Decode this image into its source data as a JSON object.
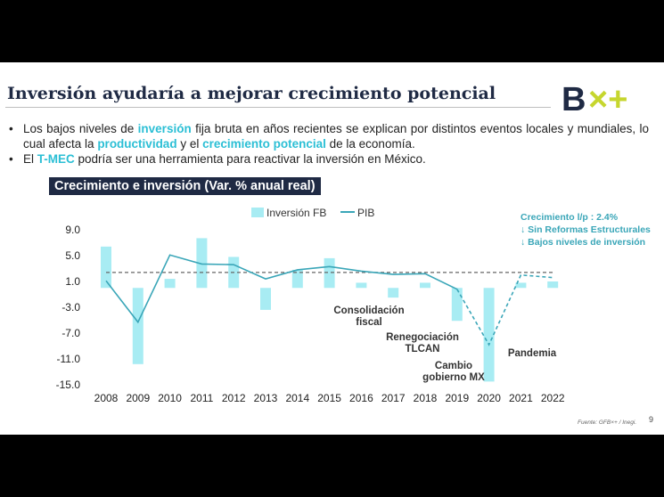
{
  "slide": {
    "title": "Inversión ayudaría a mejorar crecimiento potencial",
    "bullets": [
      [
        {
          "t": "Los bajos niveles de ",
          "hl": false
        },
        {
          "t": "inversión",
          "hl": true
        },
        {
          "t": " fija bruta en años recientes se explican por distintos eventos locales y mundiales, lo cual afecta la ",
          "hl": false
        },
        {
          "t": "productividad",
          "hl": true
        },
        {
          "t": " y el ",
          "hl": false
        },
        {
          "t": "crecimiento potencial",
          "hl": true
        },
        {
          "t": " de la economía.",
          "hl": false
        }
      ],
      [
        {
          "t": "El ",
          "hl": false
        },
        {
          "t": "T-MEC",
          "hl": true
        },
        {
          "t": " podría ser una herramienta para reactivar la inversión en México.",
          "hl": false
        }
      ]
    ],
    "source": "Fuente: GFB×+ / Inegi.",
    "page_number": "9",
    "logo": {
      "text_b": "B",
      "text_xplus": "×+",
      "name": "bx-plus-logo"
    }
  },
  "colors": {
    "navy": "#1f2a44",
    "accent": "#2bbfd5",
    "bars": "#a8ecf3",
    "line": "#3aa6b8",
    "logo_green": "#c6d62e",
    "logo_navy": "#1f2a44"
  },
  "chart_data": {
    "type": "bar+line",
    "title": "Crecimiento e inversión (Var. % anual real)",
    "categories": [
      "2008",
      "2009",
      "2010",
      "2011",
      "2012",
      "2013",
      "2014",
      "2015",
      "2016",
      "2017",
      "2018",
      "2019",
      "2020",
      "2021",
      "2022"
    ],
    "series": [
      {
        "name": "Inversión FB",
        "kind": "bar",
        "values": [
          6.4,
          -11.8,
          1.4,
          7.7,
          4.8,
          -3.4,
          2.8,
          4.6,
          0.8,
          -1.5,
          0.8,
          -5.1,
          -14.5,
          0.8,
          1.0
        ]
      },
      {
        "name": "PIB",
        "kind": "line",
        "values": [
          1.1,
          -5.3,
          5.1,
          3.7,
          3.6,
          1.4,
          2.8,
          3.3,
          2.6,
          2.1,
          2.2,
          -0.2,
          -8.8,
          2.0,
          1.6
        ],
        "dashed_from_index": 11
      }
    ],
    "potential_growth_line": 2.4,
    "yticks": [
      "9.0",
      "5.0",
      "1.0",
      "-3.0",
      "-7.0",
      "-11.0",
      "-15.0"
    ],
    "ylim": [
      -15,
      9
    ],
    "grid": false,
    "legend_position": "top",
    "annotations": [
      {
        "lines": [
          "Consolidación",
          "fiscal"
        ]
      },
      {
        "lines": [
          "Renegociación",
          "TLCAN"
        ]
      },
      {
        "lines": [
          "Cambio",
          "gobierno MX"
        ]
      },
      {
        "lines": [
          "Pandemia"
        ]
      }
    ],
    "side_note": {
      "header": "Crecimiento l/p : 2.4%",
      "items": [
        "↓ Sin Reformas Estructurales",
        "↓ Bajos niveles de inversión"
      ]
    }
  }
}
